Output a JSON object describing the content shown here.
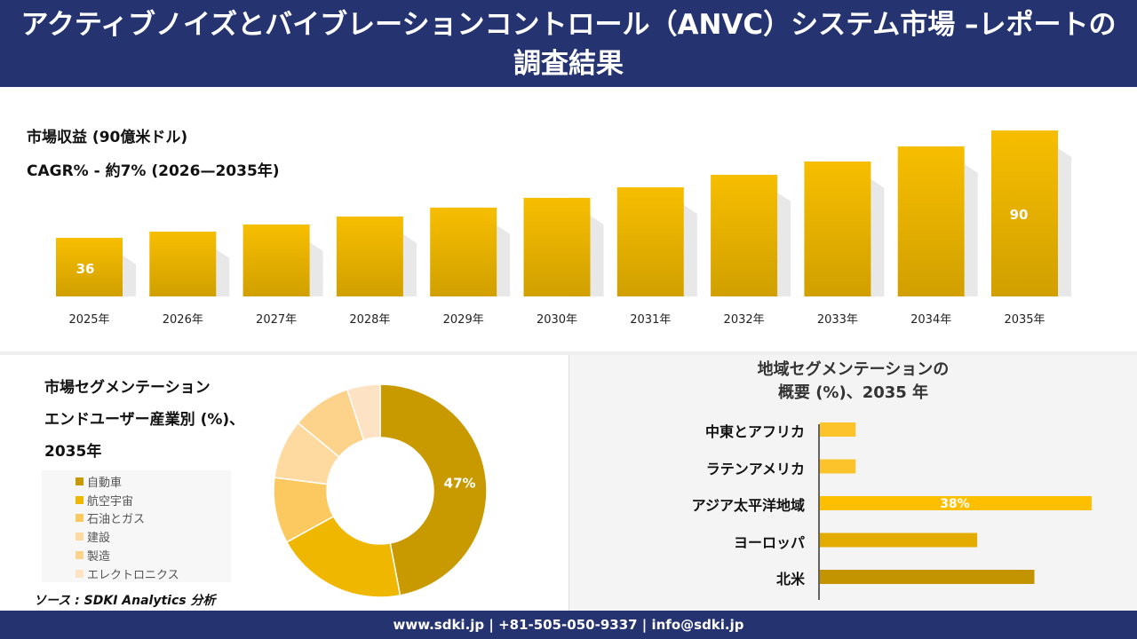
{
  "header": {
    "title": "アクティブノイズとバイブレーションコントロール（ANVC）システム市場 –レポートの調査結果"
  },
  "top": {
    "revenue_label": "市場収益 (90億米ドル)",
    "cagr_label": "CAGR% - 約7% (2026—2035年)"
  },
  "chart_data": [
    {
      "type": "bar",
      "categories": [
        "2025年",
        "2026年",
        "2027年",
        "2028年",
        "2029年",
        "2030年",
        "2031年",
        "2032年",
        "2033年",
        "2034年",
        "2035年"
      ],
      "values": [
        36,
        39.1,
        42.7,
        46.7,
        51.2,
        56.1,
        61.4,
        67.7,
        74.4,
        82.0,
        90
      ],
      "data_labels": {
        "0": "36",
        "10": "90"
      },
      "colors": {
        "bar_dark": "#d1a000",
        "bar_light": "#f7be00"
      }
    },
    {
      "type": "pie",
      "title": "市場セグメンテーション エンドユーザー産業別 (%)、2035年",
      "title_lines": [
        "市場セグメンテーション",
        "エンドユーザー産業別 (%)、",
        "2035年"
      ],
      "categories": [
        "自動車",
        "航空宇宙",
        "石油とガス",
        "建設",
        "製造",
        "エレクトロニクス"
      ],
      "values": [
        47,
        20,
        10,
        9,
        9,
        5
      ],
      "data_labels": {
        "0": "47%"
      },
      "colors": [
        "#c99a00",
        "#efb700",
        "#fcc860",
        "#fedaa0",
        "#fdd28a",
        "#fde3c4"
      ]
    },
    {
      "type": "bar",
      "orientation": "horizontal",
      "title_lines": [
        "地域セグメンテーションの",
        "概要 (%)、2035 年"
      ],
      "categories": [
        "中東とアフリカ",
        "ラテンアメリカ",
        "アジア太平洋地域",
        "ヨーロッパ",
        "北米"
      ],
      "values": [
        5,
        5,
        38,
        22,
        30
      ],
      "data_labels": {
        "2": "38%"
      },
      "colors": [
        "#fcc42a",
        "#fcc42a",
        "#fdbf00",
        "#e5ac00",
        "#c39400"
      ]
    }
  ],
  "source": "ソース : SDKI Analytics 分析",
  "footer": "www.sdki.jp | +81-505-050-9337 | info@sdki.jp"
}
